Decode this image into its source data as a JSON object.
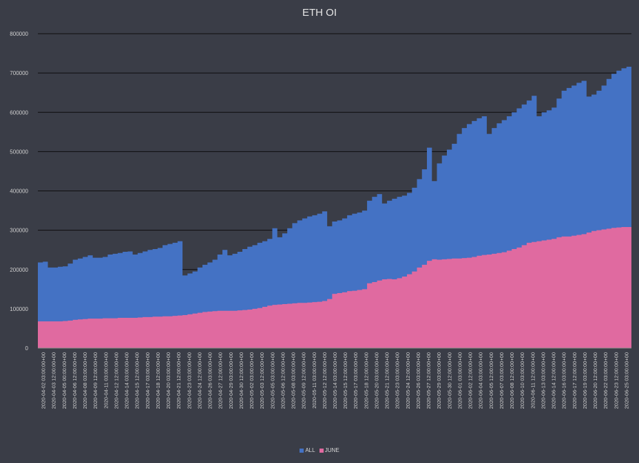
{
  "chart_data": {
    "type": "area",
    "title": "ETH OI",
    "xlabel": "",
    "ylabel": "",
    "ylim": [
      0,
      800000
    ],
    "y_ticks": [
      "0",
      "100000",
      "200000",
      "300000",
      "400000",
      "500000",
      "600000",
      "700000",
      "800000"
    ],
    "grid": true,
    "legend_position": "bottom",
    "x_tick_labels": [
      "2020-04-02 03:00:00+00",
      "2020-04-03 12:00:00+00",
      "2020-04-05 00:00:00+00",
      "2020-04-06 12:00:00+00",
      "2020-04-08 03:00:00+00",
      "2020-04-09 12:00:00+00",
      "2020-04-11 03:00:00+00",
      "2020-04-12 12:00:00+00",
      "2020-04-14 03:00:00+00",
      "2020-04-15 12:00:00+00",
      "2020-04-17 03:00:00+00",
      "2020-04-18 12:00:00+00",
      "2020-04-20 03:00:00+00",
      "2020-04-21 12:00:00+00",
      "2020-04-23 03:00:00+00",
      "2020-04-24 12:00:00+00",
      "2020-04-26 03:00:00+00",
      "2020-04-27 12:00:00+00",
      "2020-04-29 03:00:00+00",
      "2020-04-30 12:00:00+00",
      "2020-05-02 03:00:00+00",
      "2020-05-03 12:00:00+00",
      "2020-05-05 03:00:00+00",
      "2020-05-06 12:00:00+00",
      "2020-05-08 03:00:00+00",
      "2020-05-09 12:00:00+00",
      "2020-05-11 03:00:00+00",
      "2020-05-12 12:00:00+00",
      "2020-05-14 03:00:00+00",
      "2020-05-15 12:00:00+00",
      "2020-05-17 03:00:00+00",
      "2020-05-18 12:00:00+00",
      "2020-05-20 03:00:00+00",
      "2020-05-21 12:00:00+00",
      "2020-05-23 03:00:00+00",
      "2020-05-24 12:00:00+00",
      "2020-05-26 03:00:00+00",
      "2020-05-27 12:00:00+00",
      "2020-05-29 03:00:00+00",
      "2020-05-30 12:00:00+00",
      "2020-06-01 03:00:00+00",
      "2020-06-02 12:00:00+00",
      "2020-06-04 03:00:00+00",
      "2020-06-05 12:00:00+00",
      "2020-06-07 03:00:00+00",
      "2020-06-08 12:00:00+00",
      "2020-06-10 03:00:00+00",
      "2020-06-11 12:00:00+00",
      "2020-06-13 03:00:00+00",
      "2020-06-14 12:00:00+00",
      "2020-06-16 03:00:00+00",
      "2020-06-17 12:00:00+00",
      "2020-06-19 03:00:00+00",
      "2020-06-20 12:00:00+00",
      "2020-06-22 03:00:00+00",
      "2020-06-23 12:00:00+00",
      "2020-06-25 03:00:00+00"
    ],
    "series": [
      {
        "name": "ALL",
        "color": "#4472c4",
        "values": [
          218000,
          220000,
          205000,
          205000,
          207000,
          208000,
          215000,
          225000,
          228000,
          232000,
          236000,
          230000,
          230000,
          232000,
          238000,
          240000,
          242000,
          245000,
          246000,
          238000,
          242000,
          246000,
          250000,
          252000,
          255000,
          262000,
          265000,
          268000,
          272000,
          185000,
          190000,
          195000,
          205000,
          212000,
          218000,
          225000,
          238000,
          250000,
          236000,
          240000,
          245000,
          252000,
          258000,
          262000,
          268000,
          272000,
          278000,
          305000,
          282000,
          292000,
          305000,
          318000,
          325000,
          330000,
          335000,
          338000,
          342000,
          348000,
          310000,
          322000,
          325000,
          330000,
          338000,
          342000,
          345000,
          350000,
          375000,
          385000,
          392000,
          368000,
          375000,
          380000,
          385000,
          388000,
          395000,
          408000,
          430000,
          455000,
          510000,
          425000,
          470000,
          490000,
          505000,
          520000,
          545000,
          560000,
          570000,
          578000,
          585000,
          590000,
          545000,
          560000,
          572000,
          580000,
          590000,
          600000,
          610000,
          620000,
          630000,
          642000,
          590000,
          600000,
          605000,
          612000,
          635000,
          655000,
          662000,
          668000,
          675000,
          680000,
          640000,
          645000,
          655000,
          668000,
          685000,
          698000,
          706000,
          712000,
          716000
        ]
      },
      {
        "name": "JUNE",
        "color": "#e06aa0",
        "values": [
          68000,
          68000,
          68000,
          68000,
          68000,
          69000,
          70000,
          72000,
          73000,
          74000,
          75000,
          75000,
          75000,
          76000,
          76000,
          76000,
          77000,
          77000,
          77000,
          77000,
          78000,
          79000,
          79000,
          80000,
          80000,
          81000,
          81000,
          82000,
          83000,
          84000,
          86000,
          88000,
          90000,
          92000,
          93000,
          94000,
          95000,
          95000,
          95000,
          95000,
          96000,
          97000,
          98000,
          100000,
          102000,
          105000,
          108000,
          110000,
          111000,
          112000,
          113000,
          114000,
          115000,
          115000,
          116000,
          117000,
          118000,
          120000,
          125000,
          138000,
          140000,
          142000,
          145000,
          146000,
          148000,
          150000,
          165000,
          168000,
          172000,
          175000,
          176000,
          175000,
          178000,
          182000,
          188000,
          195000,
          205000,
          212000,
          222000,
          226000,
          225000,
          226000,
          227000,
          228000,
          228000,
          229000,
          230000,
          232000,
          235000,
          237000,
          238000,
          240000,
          242000,
          244000,
          248000,
          252000,
          256000,
          262000,
          268000,
          270000,
          272000,
          274000,
          276000,
          278000,
          282000,
          284000,
          284000,
          286000,
          288000,
          290000,
          294000,
          298000,
          300000,
          302000,
          304000,
          306000,
          307000,
          308000,
          308000
        ]
      }
    ]
  },
  "legend": {
    "all_label": "ALL",
    "june_label": "JUNE"
  }
}
